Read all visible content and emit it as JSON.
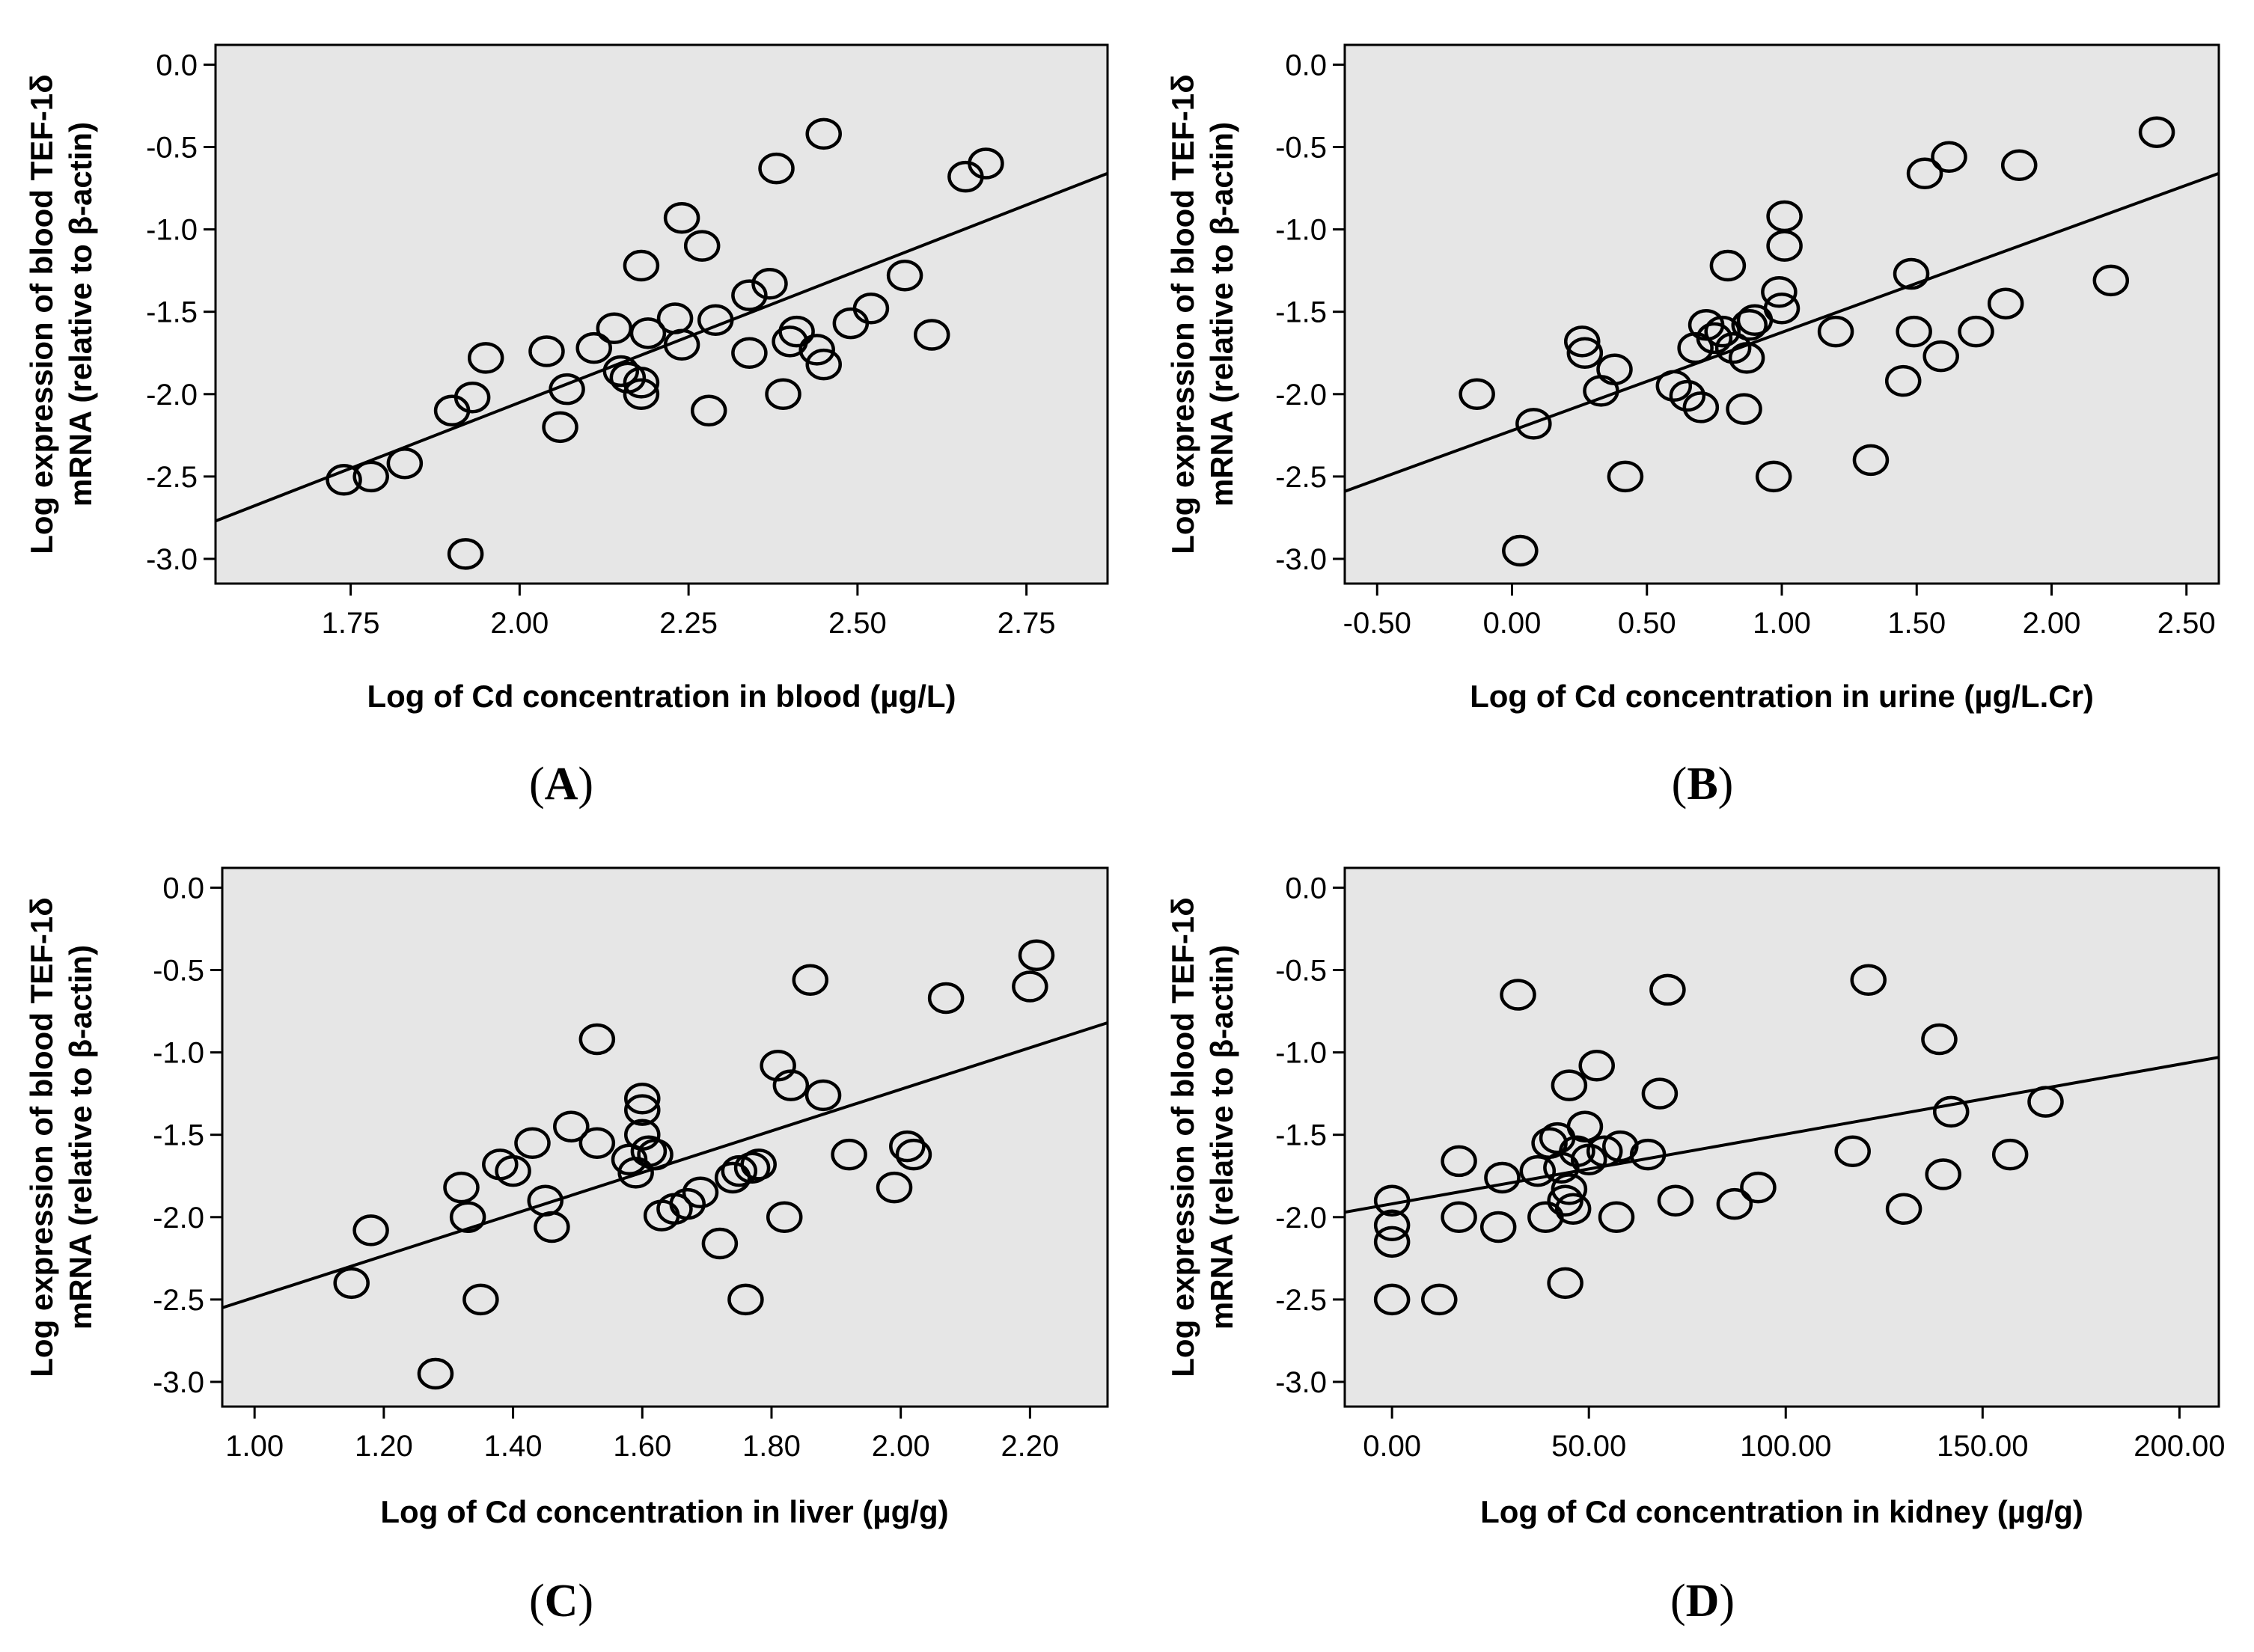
{
  "chart_data": [
    {
      "type": "scatter",
      "panel_label": "(A)",
      "panel_letter": "A",
      "xlabel": "Log of Cd concentration in blood (µg/L)",
      "ylabel_line1": "Log expression of blood TEF-1δ",
      "ylabel_line2": "mRNA (relative to β-actin)",
      "xlim": [
        1.55,
        2.87
      ],
      "ylim": [
        -3.15,
        0.12
      ],
      "xticks": [
        1.75,
        2.0,
        2.25,
        2.5,
        2.75
      ],
      "xtick_labels": [
        "1.75",
        "2.00",
        "2.25",
        "2.50",
        "2.75"
      ],
      "yticks": [
        0.0,
        -0.5,
        -1.0,
        -1.5,
        -2.0,
        -2.5,
        -3.0
      ],
      "ytick_labels": [
        "0.0",
        "-0.5",
        "-1.0",
        "-1.5",
        "-2.0",
        "-2.5",
        "-3.0"
      ],
      "fit_line": {
        "x": [
          1.55,
          2.87
        ],
        "y": [
          -2.77,
          -0.66
        ]
      },
      "x": [
        1.74,
        1.78,
        1.83,
        1.9,
        1.93,
        1.95,
        1.92,
        2.04,
        2.06,
        2.07,
        2.11,
        2.14,
        2.15,
        2.16,
        2.18,
        2.19,
        2.18,
        2.18,
        2.24,
        2.23,
        2.24,
        2.27,
        2.29,
        2.28,
        2.34,
        2.34,
        2.37,
        2.39,
        2.41,
        2.38,
        2.4,
        2.44,
        2.45,
        2.45,
        2.49,
        2.52,
        2.57,
        2.61,
        2.66,
        2.69
      ],
      "y": [
        -2.52,
        -2.5,
        -2.42,
        -2.1,
        -2.02,
        -1.78,
        -2.97,
        -1.74,
        -2.2,
        -1.97,
        -1.72,
        -1.6,
        -1.86,
        -1.9,
        -1.22,
        -1.63,
        -1.93,
        -2.0,
        -0.93,
        -1.54,
        -1.7,
        -1.1,
        -1.55,
        -2.1,
        -1.4,
        -1.75,
        -1.33,
        -2.0,
        -1.62,
        -0.63,
        -1.68,
        -1.73,
        -1.82,
        -0.42,
        -1.57,
        -1.48,
        -1.28,
        -1.64,
        -0.68,
        -0.6
      ]
    },
    {
      "type": "scatter",
      "panel_label": "(B)",
      "panel_letter": "B",
      "xlabel": "Log of Cd concentration in urine (µg/L.Cr)",
      "ylabel_line1": "Log expression of blood TEF-1δ",
      "ylabel_line2": "mRNA (relative to β-actin)",
      "xlim": [
        -0.62,
        2.62
      ],
      "ylim": [
        -3.15,
        0.12
      ],
      "xticks": [
        -0.5,
        0.0,
        0.5,
        1.0,
        1.5,
        2.0,
        2.5
      ],
      "xtick_labels": [
        "-0.50",
        "0.00",
        "0.50",
        "1.00",
        "1.50",
        "2.00",
        "2.50"
      ],
      "yticks": [
        0.0,
        -0.5,
        -1.0,
        -1.5,
        -2.0,
        -2.5,
        -3.0
      ],
      "ytick_labels": [
        "0.0",
        "-0.5",
        "-1.0",
        "-1.5",
        "-2.0",
        "-2.5",
        "-3.0"
      ],
      "fit_line": {
        "x": [
          -0.62,
          2.62
        ],
        "y": [
          -2.59,
          -0.66
        ]
      },
      "x": [
        -0.13,
        0.03,
        0.08,
        0.26,
        0.27,
        0.33,
        0.38,
        0.42,
        0.6,
        0.65,
        0.68,
        0.7,
        0.72,
        0.75,
        0.78,
        0.8,
        0.82,
        0.86,
        0.87,
        0.88,
        0.9,
        0.97,
        0.99,
        1.0,
        1.01,
        1.01,
        1.2,
        1.33,
        1.45,
        1.48,
        1.49,
        1.53,
        1.59,
        1.62,
        1.72,
        1.83,
        1.88,
        2.22,
        2.39
      ],
      "y": [
        -2.0,
        -2.95,
        -2.18,
        -1.68,
        -1.75,
        -1.98,
        -1.85,
        -2.5,
        -1.95,
        -2.01,
        -1.72,
        -2.08,
        -1.58,
        -1.66,
        -1.62,
        -1.22,
        -1.72,
        -2.09,
        -1.78,
        -1.58,
        -1.55,
        -2.5,
        -1.38,
        -1.48,
        -1.1,
        -0.92,
        -1.62,
        -2.4,
        -1.92,
        -1.27,
        -1.62,
        -0.66,
        -1.77,
        -0.56,
        -1.62,
        -1.45,
        -0.61,
        -1.31,
        -0.41
      ]
    },
    {
      "type": "scatter",
      "panel_label": "(C)",
      "panel_letter": "C",
      "xlabel": "Log of Cd concentration in liver (µg/g)",
      "ylabel_line1": "Log expression of blood TEF-1δ",
      "ylabel_line2": "mRNA (relative to β-actin)",
      "xlim": [
        0.95,
        2.32
      ],
      "ylim": [
        -3.15,
        0.12
      ],
      "xticks": [
        1.0,
        1.2,
        1.4,
        1.6,
        1.8,
        2.0,
        2.2
      ],
      "xtick_labels": [
        "1.00",
        "1.20",
        "1.40",
        "1.60",
        "1.80",
        "2.00",
        "2.20"
      ],
      "yticks": [
        0.0,
        -0.5,
        -1.0,
        -1.5,
        -2.0,
        -2.5,
        -3.0
      ],
      "ytick_labels": [
        "0.0",
        "-0.5",
        "-1.0",
        "-1.5",
        "-2.0",
        "-2.5",
        "-3.0"
      ],
      "fit_line": {
        "x": [
          0.95,
          2.32
        ],
        "y": [
          -2.55,
          -0.82
        ]
      },
      "x": [
        1.15,
        1.18,
        1.28,
        1.32,
        1.33,
        1.35,
        1.38,
        1.4,
        1.43,
        1.45,
        1.46,
        1.49,
        1.53,
        1.53,
        1.58,
        1.59,
        1.6,
        1.6,
        1.6,
        1.61,
        1.62,
        1.63,
        1.65,
        1.67,
        1.69,
        1.72,
        1.74,
        1.75,
        1.76,
        1.77,
        1.78,
        1.81,
        1.82,
        1.83,
        1.86,
        1.88,
        1.92,
        1.99,
        2.01,
        2.02,
        2.07,
        2.2,
        2.21
      ],
      "y": [
        -2.4,
        -2.08,
        -2.95,
        -1.82,
        -2.0,
        -2.5,
        -1.68,
        -1.72,
        -1.55,
        -1.9,
        -2.06,
        -1.45,
        -1.55,
        -0.92,
        -1.65,
        -1.73,
        -1.5,
        -1.35,
        -1.28,
        -1.6,
        -1.62,
        -1.99,
        -1.95,
        -1.92,
        -1.85,
        -2.16,
        -1.76,
        -1.72,
        -2.5,
        -1.7,
        -1.68,
        -1.08,
        -2.0,
        -1.2,
        -0.56,
        -1.26,
        -1.62,
        -1.82,
        -1.57,
        -1.62,
        -0.67,
        -0.6,
        -0.41
      ]
    },
    {
      "type": "scatter",
      "panel_label": "(D)",
      "panel_letter": "D",
      "xlabel": "Log of Cd concentration in kidney (µg/g)",
      "ylabel_line1": "Log expression of blood TEF-1δ",
      "ylabel_line2": "mRNA (relative to β-actin)",
      "xlim": [
        -12,
        210
      ],
      "ylim": [
        -3.15,
        0.12
      ],
      "xticks": [
        0,
        50,
        100,
        150,
        200
      ],
      "xtick_labels": [
        "0.00",
        "50.00",
        "100.00",
        "150.00",
        "200.00"
      ],
      "yticks": [
        0.0,
        -0.5,
        -1.0,
        -1.5,
        -2.0,
        -2.5,
        -3.0
      ],
      "ytick_labels": [
        "0.0",
        "-0.5",
        "-1.0",
        "-1.5",
        "-2.0",
        "-2.5",
        "-3.0"
      ],
      "fit_line": {
        "x": [
          -12,
          210
        ],
        "y": [
          -1.97,
          -1.03
        ]
      },
      "x": [
        0,
        0,
        0,
        0,
        12,
        17,
        17,
        27,
        28,
        32,
        37,
        39,
        40,
        42,
        43,
        44,
        44,
        45,
        45,
        46,
        47,
        49,
        50,
        52,
        54,
        57,
        58,
        65,
        68,
        70,
        72,
        87,
        93,
        117,
        121,
        130,
        139,
        140,
        142,
        157,
        166
      ],
      "y": [
        -1.9,
        -2.05,
        -2.15,
        -2.5,
        -2.5,
        -1.66,
        -2.0,
        -2.06,
        -1.76,
        -0.65,
        -1.72,
        -2.0,
        -1.55,
        -1.52,
        -1.7,
        -1.9,
        -2.4,
        -1.2,
        -1.83,
        -1.95,
        -1.6,
        -1.45,
        -1.65,
        -1.08,
        -1.6,
        -2.0,
        -1.57,
        -1.62,
        -1.25,
        -0.62,
        -1.9,
        -1.92,
        -1.82,
        -1.6,
        -0.56,
        -1.95,
        -0.92,
        -1.74,
        -1.36,
        -1.62,
        -1.3
      ]
    }
  ]
}
